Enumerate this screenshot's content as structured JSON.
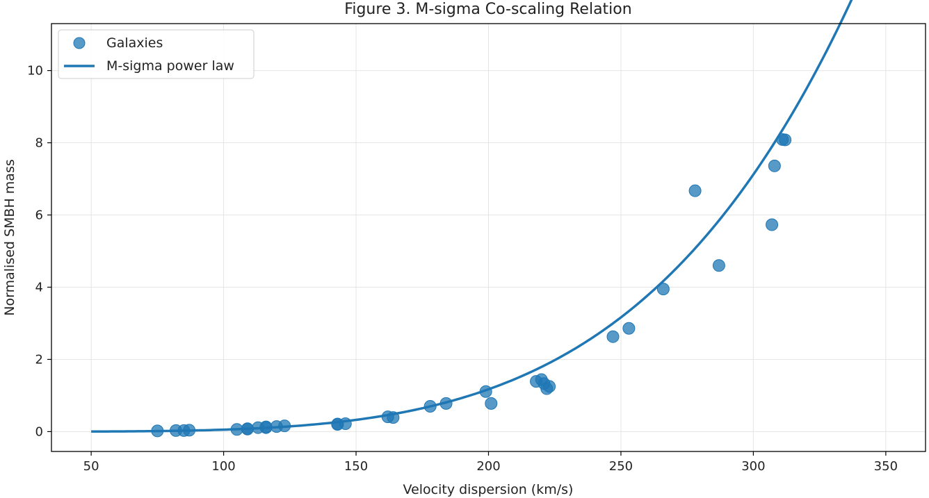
{
  "chart_data": {
    "type": "scatter",
    "title": "Figure 3. M-sigma Co-scaling Relation",
    "xlabel": "Velocity dispersion (km/s)",
    "ylabel": "Normalised SMBH mass",
    "xlim": [
      35,
      365
    ],
    "ylim": [
      -0.55,
      11.3
    ],
    "xticks": [
      50,
      100,
      150,
      200,
      250,
      300,
      350
    ],
    "yticks": [
      0,
      2,
      4,
      6,
      8,
      10
    ],
    "grid": true,
    "legend_position": "upper-left",
    "colors": {
      "points": "#1f77b4",
      "line": "#1f77b4",
      "grid": "#e5e5e5"
    },
    "series": [
      {
        "name": "Galaxies",
        "kind": "scatter",
        "points": [
          [
            75,
            0.02
          ],
          [
            82,
            0.03
          ],
          [
            85,
            0.03
          ],
          [
            87,
            0.04
          ],
          [
            105,
            0.06
          ],
          [
            109,
            0.07
          ],
          [
            109,
            0.08
          ],
          [
            113,
            0.11
          ],
          [
            116,
            0.11
          ],
          [
            116,
            0.13
          ],
          [
            120,
            0.14
          ],
          [
            123,
            0.16
          ],
          [
            143,
            0.2
          ],
          [
            143,
            0.21
          ],
          [
            146,
            0.22
          ],
          [
            162,
            0.41
          ],
          [
            164,
            0.39
          ],
          [
            178,
            0.7
          ],
          [
            184,
            0.78
          ],
          [
            199,
            1.11
          ],
          [
            201,
            0.78
          ],
          [
            218,
            1.39
          ],
          [
            220,
            1.44
          ],
          [
            221,
            1.33
          ],
          [
            222,
            1.19
          ],
          [
            223,
            1.25
          ],
          [
            247,
            2.63
          ],
          [
            253,
            2.86
          ],
          [
            266,
            3.95
          ],
          [
            278,
            6.67
          ],
          [
            287,
            4.6
          ],
          [
            307,
            5.73
          ],
          [
            308,
            7.36
          ],
          [
            311,
            8.09
          ],
          [
            312,
            8.08
          ]
        ]
      },
      {
        "name": "M-sigma power law",
        "kind": "line",
        "model": "power",
        "x_range": [
          50,
          350
        ],
        "reference_x": 200,
        "reference_y": 1.172,
        "exponent": 4.45
      }
    ]
  }
}
